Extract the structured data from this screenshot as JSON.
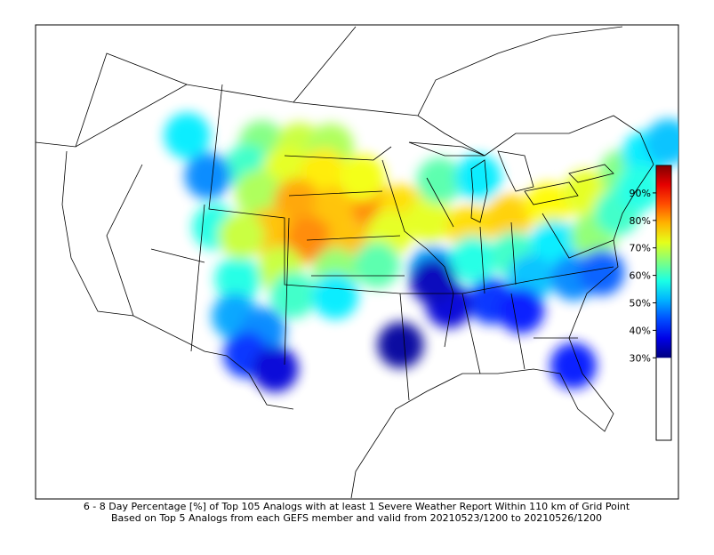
{
  "map": {
    "caption": [
      "6 - 8 Day Percentage [%] of Top 105 Analogs with at least 1 Severe Weather Report Within 110 km of Grid Point",
      "Based on Top 5 Analogs from each GEFS member and valid from 20210523/1200 to 20210526/1200"
    ],
    "colormap": "jet",
    "color_range": [
      30,
      100
    ],
    "colorbar": {
      "lim": [
        0,
        100
      ],
      "ticks": [
        {
          "value": 30,
          "label": "30%"
        },
        {
          "value": 40,
          "label": "40%"
        },
        {
          "value": 50,
          "label": "50%"
        },
        {
          "value": 60,
          "label": "60%"
        },
        {
          "value": 70,
          "label": "70%"
        },
        {
          "value": 80,
          "label": "80%"
        },
        {
          "value": 90,
          "label": "90%"
        }
      ]
    },
    "points": {
      "lon": [
        -103,
        -100,
        -97.5,
        -104,
        -101,
        -98,
        -103,
        -100,
        -97,
        -94,
        -92,
        -102,
        -99,
        -96,
        -93,
        -101,
        -97,
        -94,
        -100,
        -97,
        -104,
        -104,
        -102,
        -103,
        -101,
        -90,
        -87,
        -84,
        -81,
        -78,
        -75,
        -73,
        -71,
        -89,
        -86,
        -90,
        -87,
        -84,
        -81,
        -78,
        -76,
        -83,
        -80,
        -78,
        -86,
        -89,
        -90,
        -84,
        -81,
        -92.5,
        -109,
        -107,
        -106,
        -104,
        -95,
        -74
      ],
      "lat": [
        47,
        47,
        47,
        45,
        45,
        45,
        43,
        42.5,
        42,
        42,
        42,
        40,
        39.5,
        39,
        40,
        37,
        37,
        37.5,
        35,
        35,
        36,
        33,
        32,
        30,
        29,
        41,
        40,
        40.5,
        41,
        41.5,
        42.5,
        43.5,
        44,
        44,
        44,
        37,
        37.5,
        37.5,
        38,
        38,
        39.5,
        35.5,
        35,
        35,
        34,
        34,
        36,
        33,
        28,
        31,
        47,
        44,
        40,
        39.5,
        44.5,
        41
      ],
      "values": [
        65,
        70,
        68,
        60,
        72,
        75,
        68,
        80,
        78,
        82,
        76,
        78,
        82,
        78,
        72,
        70,
        66,
        62,
        60,
        55,
        58,
        50,
        48,
        42,
        36,
        72,
        76,
        77,
        74,
        72,
        65,
        55,
        52,
        62,
        55,
        50,
        58,
        60,
        55,
        66,
        60,
        52,
        48,
        45,
        42,
        36,
        34,
        40,
        40,
        32,
        55,
        48,
        58,
        70,
        73,
        58
      ]
    }
  }
}
